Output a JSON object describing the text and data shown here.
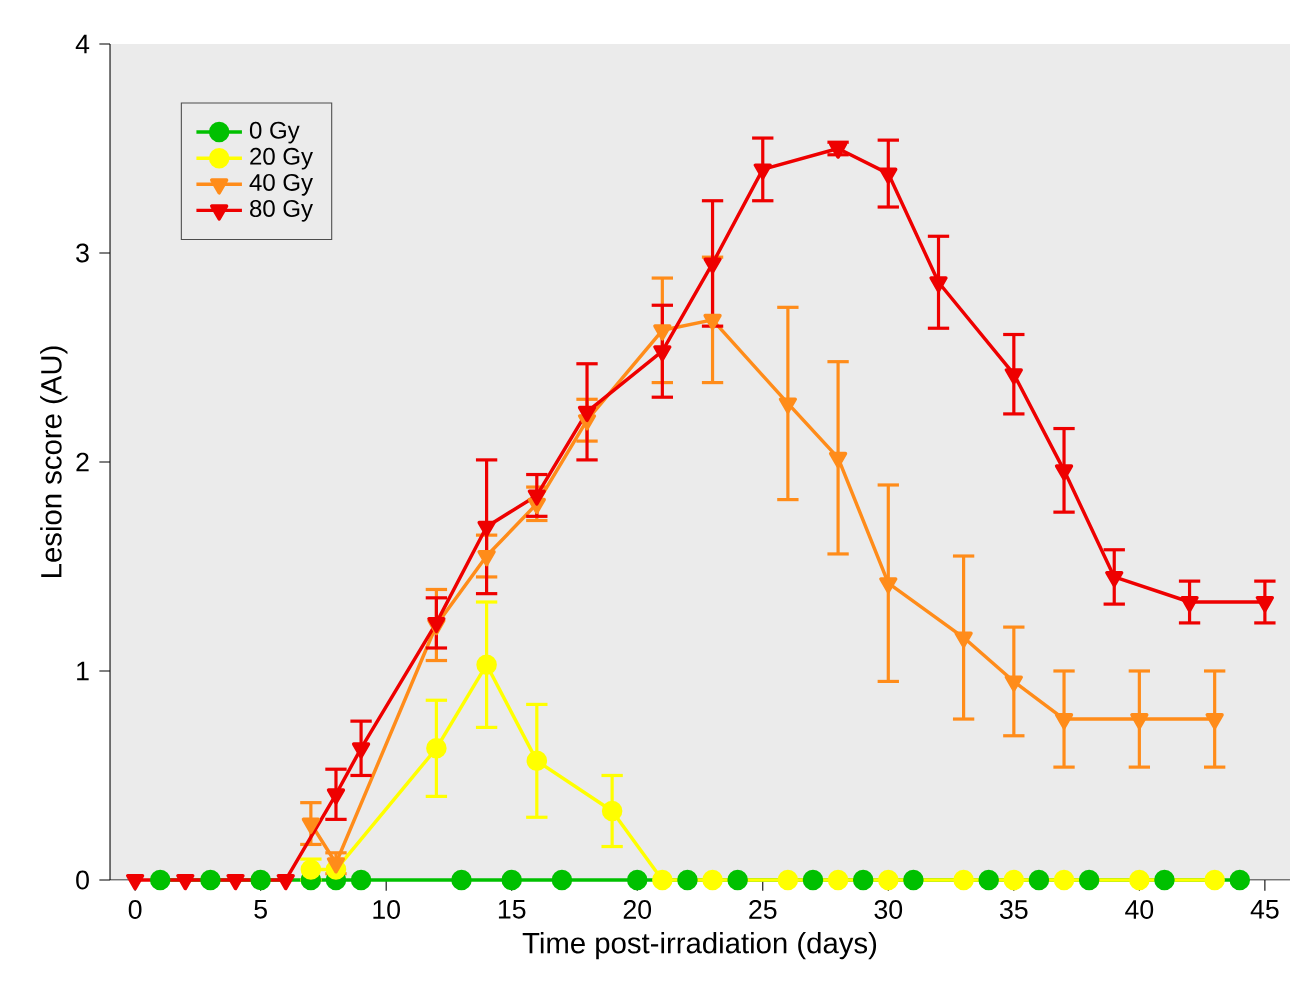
{
  "chart_data": {
    "type": "line",
    "xlabel": "Time post-irradiation (days)",
    "ylabel": "Lesion score (AU)",
    "xlim": [
      -1,
      46
    ],
    "ylim": [
      0,
      4
    ],
    "xticks": [
      0,
      5,
      10,
      15,
      20,
      25,
      30,
      35,
      40,
      45
    ],
    "yticks": [
      0,
      1,
      2,
      3,
      4
    ],
    "legend": "top left",
    "grid": false,
    "series": [
      {
        "name": "0 Gy",
        "color": "#00c000",
        "marker": "circle",
        "x": [
          1,
          3,
          5,
          7,
          8,
          9,
          13,
          15,
          17,
          20,
          22,
          24,
          27,
          29,
          31,
          34,
          36,
          38,
          41,
          44
        ],
        "values": [
          0,
          0,
          0,
          0,
          0,
          0,
          0,
          0,
          0,
          0,
          0,
          0,
          0,
          0,
          0,
          0,
          0,
          0,
          0,
          0
        ]
      },
      {
        "name": "20 Gy",
        "color": "#ffff00",
        "marker": "circle",
        "x": [
          7,
          8,
          12,
          14,
          16,
          19,
          21,
          23,
          26,
          28,
          30,
          33,
          35,
          37,
          40,
          43
        ],
        "values": [
          0.05,
          0.05,
          0.63,
          1.03,
          0.57,
          0.33,
          0,
          0,
          0,
          0,
          0,
          0,
          0,
          0,
          0,
          0
        ],
        "errors": [
          0.05,
          null,
          0.23,
          0.3,
          0.27,
          0.17,
          null,
          null,
          null,
          null,
          null,
          null,
          null,
          null,
          null,
          null
        ]
      },
      {
        "name": "40 Gy",
        "color": "#ff8c1a",
        "marker": "triangle",
        "x": [
          7,
          8,
          12,
          14,
          16,
          18,
          21,
          23,
          26,
          28,
          30,
          33,
          35,
          37,
          40,
          43
        ],
        "values": [
          0.27,
          0.08,
          1.22,
          1.55,
          1.8,
          2.2,
          2.63,
          2.68,
          2.28,
          2.02,
          1.42,
          1.16,
          0.95,
          0.77,
          0.77,
          0.77
        ],
        "errors": [
          0.1,
          0.05,
          0.17,
          0.1,
          0.08,
          0.1,
          0.25,
          0.3,
          0.46,
          0.46,
          0.47,
          0.39,
          0.26,
          0.23,
          0.23,
          0.23
        ]
      },
      {
        "name": "80 Gy",
        "color": "#ee0000",
        "marker": "triangle",
        "x": [
          0,
          2,
          4,
          6,
          8,
          9,
          12,
          14,
          16,
          18,
          21,
          23,
          25,
          28,
          30,
          32,
          35,
          37,
          39,
          42,
          45
        ],
        "values": [
          0,
          0,
          0,
          0,
          0.41,
          0.63,
          1.23,
          1.69,
          1.84,
          2.24,
          2.53,
          2.95,
          3.4,
          3.5,
          3.38,
          2.86,
          2.42,
          1.96,
          1.45,
          1.33,
          1.33
        ],
        "errors": [
          null,
          null,
          null,
          null,
          0.12,
          0.13,
          0.12,
          0.32,
          0.1,
          0.23,
          0.22,
          0.3,
          0.15,
          0.03,
          0.16,
          0.22,
          0.19,
          0.2,
          0.13,
          0.1,
          0.1
        ]
      }
    ]
  }
}
